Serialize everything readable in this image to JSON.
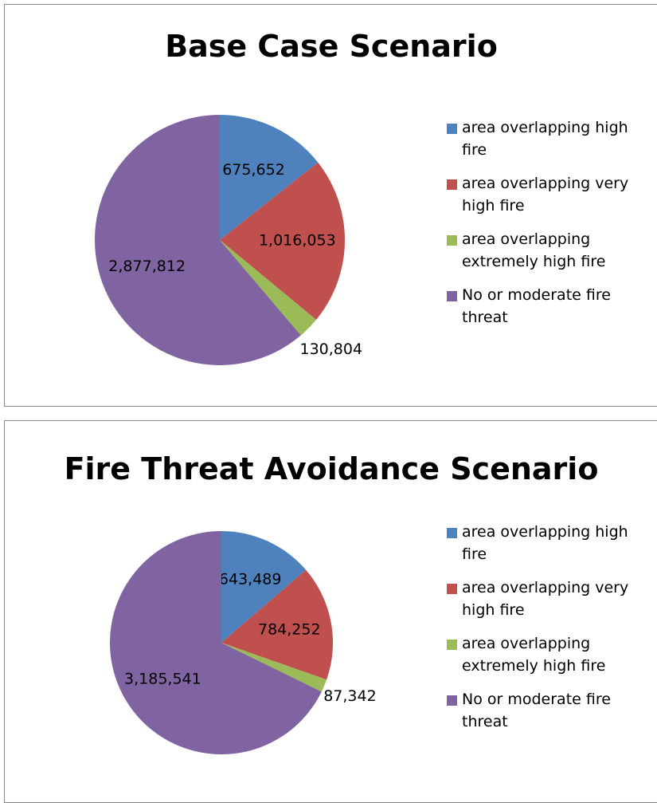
{
  "chart_data": [
    {
      "type": "pie",
      "title": "Base Case Scenario",
      "categories": [
        "area overlapping high fire",
        "area overlapping very high fire",
        "area overlapping extremely high fire",
        "No or moderate fire threat"
      ],
      "values": [
        675652,
        1016053,
        130804,
        2877812
      ],
      "value_labels": [
        "675,652",
        "1,016,053",
        "130,804",
        "2,877,812"
      ],
      "colors": [
        "#4f81bd",
        "#c0504d",
        "#9bbb59",
        "#8064a2"
      ],
      "legend": "right"
    },
    {
      "type": "pie",
      "title": "Fire Threat Avoidance Scenario",
      "categories": [
        "area overlapping high fire",
        "area overlapping very high fire",
        "area overlapping extremely high fire",
        "No or moderate fire threat"
      ],
      "values": [
        643489,
        784252,
        87342,
        3185541
      ],
      "value_labels": [
        "643,489",
        "784,252",
        "87,342",
        "3,185,541"
      ],
      "colors": [
        "#4f81bd",
        "#c0504d",
        "#9bbb59",
        "#8064a2"
      ],
      "legend": "right"
    }
  ]
}
